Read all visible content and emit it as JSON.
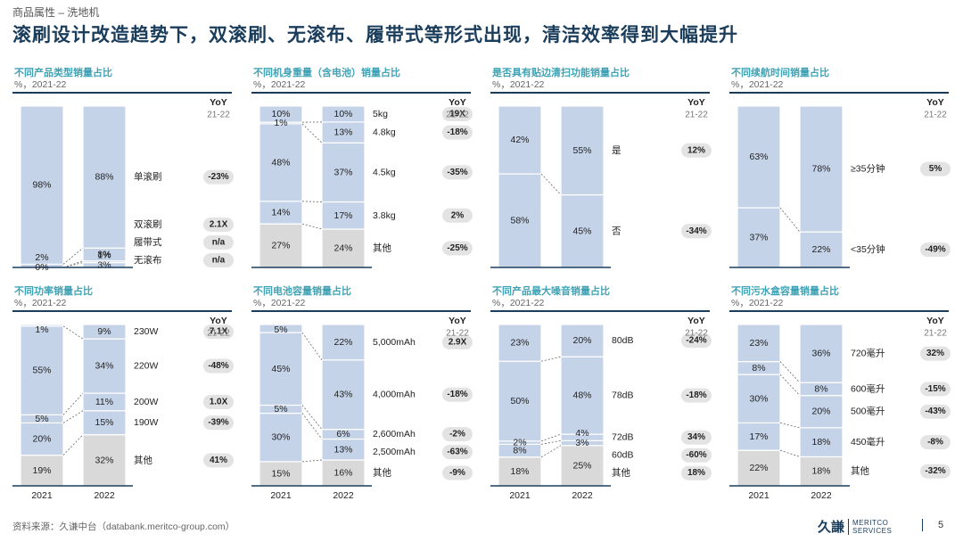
{
  "breadcrumb": "商品属性 – 洗地机",
  "title": "滚刷设计改造趋势下，双滚刷、无滚布、履带式等形式出现，清洁效率得到大幅提升",
  "source": "资料来源：久谦中台（databank.meritco-group.com）",
  "page_number": "5",
  "logo": {
    "cn": "久謙",
    "en1": "MERITCO",
    "en2": "SERVICES"
  },
  "yoy_header": "YoY",
  "yoy_sub": "21-22",
  "colors": {
    "blue": "#c5d3e8",
    "grey": "#d9d9d9",
    "dark": "#1a3d5c",
    "teal": "#3fa3b5",
    "pill": "#e3e3e3"
  },
  "chart_data": [
    {
      "type": "bar",
      "stacked": "100%",
      "title": "不同产品类型销量占比",
      "subtitle": "%，2021-22",
      "categories": [
        "2021",
        "2022"
      ],
      "show_categories": false,
      "series": [
        {
          "name": "无滚布",
          "values": [
            0,
            3
          ],
          "labels": [
            "0%",
            "3%"
          ],
          "color": "blue",
          "yoy": "n/a"
        },
        {
          "name": "履带式",
          "values": [
            0,
            1
          ],
          "labels": [
            "",
            "1%"
          ],
          "color": "blue",
          "yoy": "n/a"
        },
        {
          "name": "双滚刷",
          "values": [
            2,
            8
          ],
          "labels": [
            "2%",
            "8%"
          ],
          "color": "blue",
          "yoy": "2.1X"
        },
        {
          "name": "单滚刷",
          "values": [
            98,
            88
          ],
          "labels": [
            "98%",
            "88%"
          ],
          "color": "blue",
          "yoy": "-23%"
        }
      ]
    },
    {
      "type": "bar",
      "stacked": "100%",
      "title": "不同机身重量（含电池）销量占比",
      "subtitle": "%，2021-22",
      "categories": [
        "2021",
        "2022"
      ],
      "show_categories": false,
      "series": [
        {
          "name": "其他",
          "values": [
            27,
            24
          ],
          "labels": [
            "27%",
            "24%"
          ],
          "color": "grey",
          "yoy": "-25%"
        },
        {
          "name": "3.8kg",
          "values": [
            14,
            17
          ],
          "labels": [
            "14%",
            "17%"
          ],
          "color": "blue",
          "yoy": "2%"
        },
        {
          "name": "4.5kg",
          "values": [
            48,
            37
          ],
          "labels": [
            "48%",
            "37%"
          ],
          "color": "blue",
          "yoy": "-35%"
        },
        {
          "name": "4.8kg",
          "values": [
            1,
            13
          ],
          "labels": [
            "1%",
            "13%"
          ],
          "color": "blue",
          "yoy": "-18%"
        },
        {
          "name": "5kg",
          "values": [
            10,
            10
          ],
          "labels": [
            "10%",
            "10%"
          ],
          "color": "blue",
          "yoy": "19X"
        }
      ]
    },
    {
      "type": "bar",
      "stacked": "100%",
      "title": "是否具有贴边清扫功能销量占比",
      "subtitle": "%，2021-22",
      "categories": [
        "2021",
        "2022"
      ],
      "show_categories": false,
      "series": [
        {
          "name": "否",
          "values": [
            58,
            45
          ],
          "labels": [
            "58%",
            "45%"
          ],
          "color": "blue",
          "yoy": "-34%"
        },
        {
          "name": "是",
          "values": [
            42,
            55
          ],
          "labels": [
            "42%",
            "55%"
          ],
          "color": "blue",
          "yoy": "12%"
        }
      ]
    },
    {
      "type": "bar",
      "stacked": "100%",
      "title": "不同续航时间销量占比",
      "subtitle": "%，2021-22",
      "categories": [
        "2021",
        "2022"
      ],
      "show_categories": false,
      "series": [
        {
          "name": "<35分钟",
          "values": [
            37,
            22
          ],
          "labels": [
            "37%",
            "22%"
          ],
          "color": "blue",
          "yoy": "-49%"
        },
        {
          "name": "≥35分钟",
          "values": [
            63,
            78
          ],
          "labels": [
            "63%",
            "78%"
          ],
          "color": "blue",
          "yoy": "5%"
        }
      ]
    },
    {
      "type": "bar",
      "stacked": "100%",
      "title": "不同功率销量占比",
      "subtitle": "%，2021-22",
      "categories": [
        "2021",
        "2022"
      ],
      "show_categories": true,
      "series": [
        {
          "name": "其他",
          "values": [
            19,
            32
          ],
          "labels": [
            "19%",
            "32%"
          ],
          "color": "grey",
          "yoy": "41%"
        },
        {
          "name": "190W",
          "values": [
            20,
            15
          ],
          "labels": [
            "20%",
            "15%"
          ],
          "color": "blue",
          "yoy": "-39%"
        },
        {
          "name": "200W",
          "values": [
            5,
            11
          ],
          "labels": [
            "5%",
            "11%"
          ],
          "color": "blue",
          "yoy": "1.0X"
        },
        {
          "name": "220W",
          "values": [
            55,
            34
          ],
          "labels": [
            "55%",
            "34%"
          ],
          "color": "blue",
          "yoy": "-48%"
        },
        {
          "name": "230W",
          "values": [
            1,
            9
          ],
          "labels": [
            "1%",
            "9%"
          ],
          "color": "blue",
          "yoy": "7.1X"
        }
      ]
    },
    {
      "type": "bar",
      "stacked": "100%",
      "title": "不同电池容量销量占比",
      "subtitle": "%，2021-22",
      "categories": [
        "2021",
        "2022"
      ],
      "show_categories": true,
      "series": [
        {
          "name": "其他",
          "values": [
            15,
            16
          ],
          "labels": [
            "15%",
            "16%"
          ],
          "color": "grey",
          "yoy": "-9%"
        },
        {
          "name": "2,500mAh",
          "values": [
            30,
            13
          ],
          "labels": [
            "30%",
            "13%"
          ],
          "color": "blue",
          "yoy": "-63%"
        },
        {
          "name": "2,600mAh",
          "values": [
            5,
            6
          ],
          "labels": [
            "5%",
            "6%"
          ],
          "color": "blue",
          "yoy": "-2%"
        },
        {
          "name": "4,000mAh",
          "values": [
            45,
            43
          ],
          "labels": [
            "45%",
            "43%"
          ],
          "color": "blue",
          "yoy": "-18%"
        },
        {
          "name": "5,000mAh",
          "values": [
            5,
            22
          ],
          "labels": [
            "5%",
            "22%"
          ],
          "color": "blue",
          "yoy": "2.9X"
        }
      ]
    },
    {
      "type": "bar",
      "stacked": "100%",
      "title": "不同产品最大噪音销量占比",
      "subtitle": "%，2021-22",
      "categories": [
        "2021",
        "2022"
      ],
      "show_categories": true,
      "series": [
        {
          "name": "其他",
          "values": [
            18,
            25
          ],
          "labels": [
            "18%",
            "25%"
          ],
          "color": "grey",
          "yoy": "18%"
        },
        {
          "name": "60dB",
          "values": [
            8,
            3
          ],
          "labels": [
            "8%",
            "3%"
          ],
          "color": "blue",
          "yoy": "-60%"
        },
        {
          "name": "72dB",
          "values": [
            2,
            4
          ],
          "labels": [
            "2%",
            "4%"
          ],
          "color": "blue",
          "yoy": "34%"
        },
        {
          "name": "78dB",
          "values": [
            50,
            48
          ],
          "labels": [
            "50%",
            "48%"
          ],
          "color": "blue",
          "yoy": "-18%"
        },
        {
          "name": "80dB",
          "values": [
            23,
            20
          ],
          "labels": [
            "23%",
            "20%"
          ],
          "color": "blue",
          "yoy": "-24%"
        }
      ]
    },
    {
      "type": "bar",
      "stacked": "100%",
      "title": "不同污水盒容量销量占比",
      "subtitle": "%，2021-22",
      "categories": [
        "2021",
        "2022"
      ],
      "show_categories": true,
      "series": [
        {
          "name": "其他",
          "values": [
            22,
            18
          ],
          "labels": [
            "22%",
            "18%"
          ],
          "color": "grey",
          "yoy": "-32%"
        },
        {
          "name": "450毫升",
          "values": [
            17,
            18
          ],
          "labels": [
            "17%",
            "18%"
          ],
          "color": "blue",
          "yoy": "-8%"
        },
        {
          "name": "500毫升",
          "values": [
            30,
            20
          ],
          "labels": [
            "30%",
            "20%"
          ],
          "color": "blue",
          "yoy": "-43%"
        },
        {
          "name": "600毫升",
          "values": [
            8,
            8
          ],
          "labels": [
            "8%",
            "8%"
          ],
          "color": "blue",
          "yoy": "-15%"
        },
        {
          "name": "720毫升",
          "values": [
            23,
            36
          ],
          "labels": [
            "23%",
            "36%"
          ],
          "color": "blue",
          "yoy": "32%"
        }
      ]
    }
  ]
}
